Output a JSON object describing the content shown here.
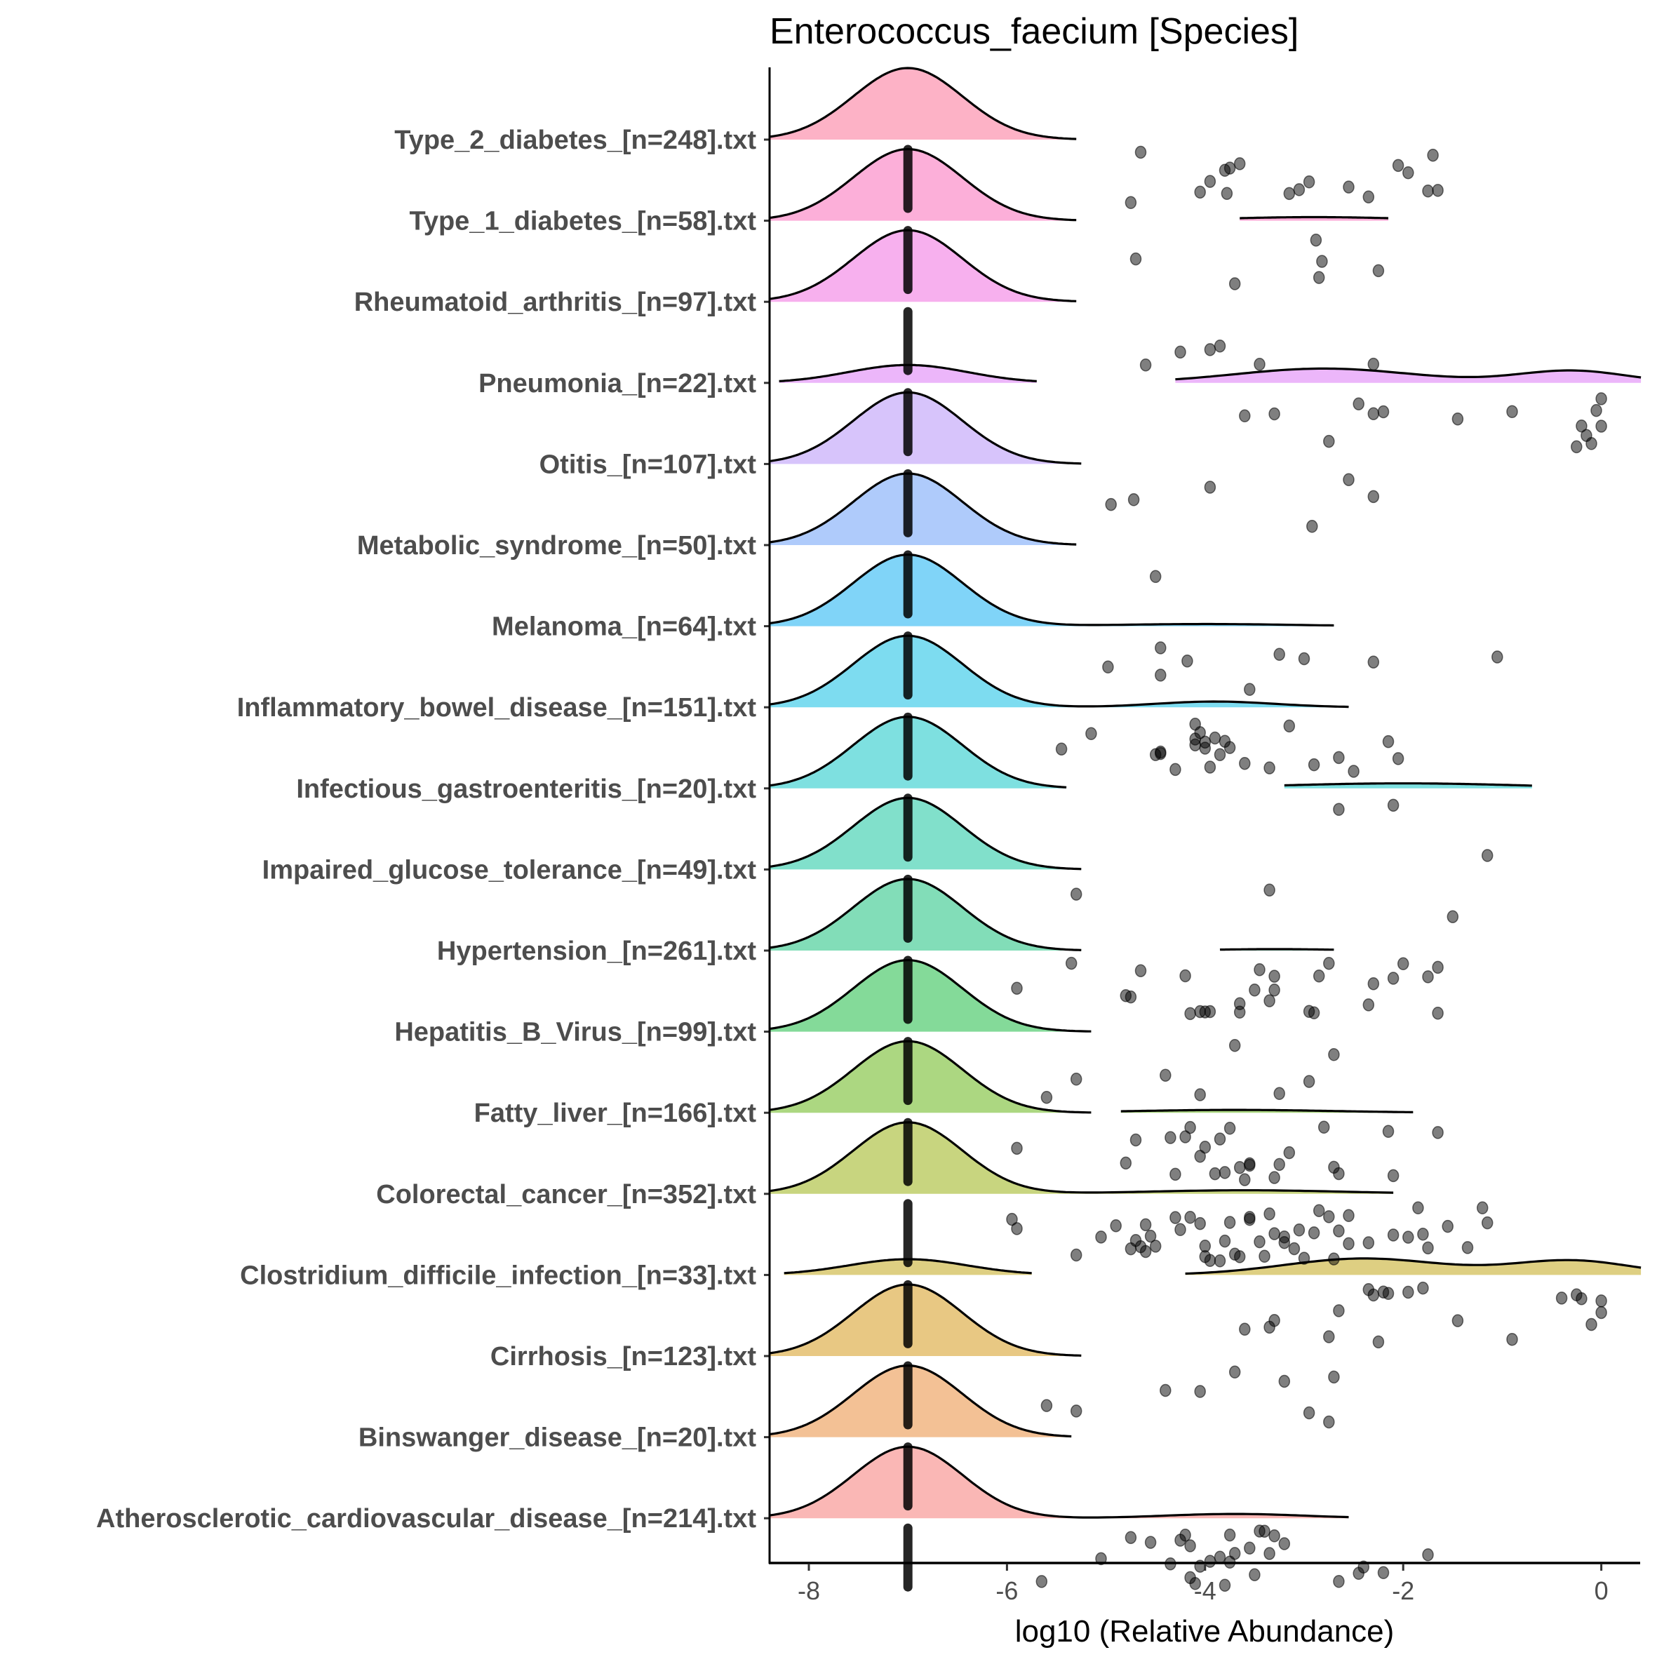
{
  "chart_data": {
    "type": "raincloud",
    "title": "Enterococcus_faecium [Species]",
    "xlabel": "log10 (Relative Abundance)",
    "ylabel": "",
    "xlim": [
      -8.4,
      0.4
    ],
    "xticks": [
      -8,
      -6,
      -4,
      -2,
      0
    ],
    "xtick_labels": [
      "-8",
      "-6",
      "-4",
      "-2",
      "0"
    ],
    "grid": false,
    "legend": "none",
    "zero_value": -7,
    "categories": [
      {
        "label": "Type_2_diabetes_[n=248].txt",
        "color": "#FDB2C6",
        "density": [
          {
            "mu": -7,
            "sd": 0.55,
            "w": 1.0,
            "from": -8.4,
            "to": -5.3
          }
        ],
        "points": [
          -4.65,
          -4.75,
          -3.75,
          -3.65,
          -4.05,
          -3.95,
          -3.8,
          -3.78,
          -3.15,
          -2.95,
          -3.05,
          -2.55,
          -2.35,
          -2.05,
          -1.95,
          -1.75,
          -1.65,
          -1.7
        ]
      },
      {
        "label": "Type_1_diabetes_[n=58].txt",
        "color": "#FCAFD9",
        "density": [
          {
            "mu": -7,
            "sd": 0.55,
            "w": 1.0,
            "from": -8.4,
            "to": -5.3
          },
          {
            "mu": -2.9,
            "sd": 0.9,
            "w": 0.05,
            "from": -3.65,
            "to": -2.15
          }
        ],
        "points": [
          -2.25,
          -4.7,
          -3.7,
          -2.85,
          -2.88,
          -2.82
        ]
      },
      {
        "label": "Rheumatoid_arthritis_[n=97].txt",
        "color": "#F7B0EE",
        "density": [
          {
            "mu": -7,
            "sd": 0.55,
            "w": 1.0,
            "from": -8.4,
            "to": -5.3
          }
        ],
        "points": [
          -4.6,
          -4.25,
          -3.95,
          -3.85,
          -3.45,
          -2.3
        ]
      },
      {
        "label": "Pneumonia_[n=22].txt",
        "color": "#ECB6FA",
        "density": [
          {
            "mu": -7,
            "sd": 0.6,
            "w": 0.25,
            "from": -8.3,
            "to": -5.7
          },
          {
            "mu": -2.8,
            "sd": 0.9,
            "w": 0.2,
            "from": -4.3,
            "to": 0.4
          },
          {
            "mu": -0.3,
            "sd": 0.55,
            "w": 0.17,
            "from": -4.3,
            "to": 0.4
          }
        ],
        "points": [
          -3.6,
          -3.3,
          -2.75,
          -2.3,
          -2.45,
          -2.2,
          -1.45,
          -0.9,
          -0.25,
          -0.2,
          -0.15,
          -0.1,
          0,
          -0.05,
          0
        ]
      },
      {
        "label": "Otitis_[n=107].txt",
        "color": "#D7C4FB",
        "density": [
          {
            "mu": -7,
            "sd": 0.55,
            "w": 1.0,
            "from": -8.4,
            "to": -5.25
          }
        ],
        "points": [
          -4.95,
          -4.72,
          -3.95,
          -2.92,
          -2.55,
          -2.3
        ]
      },
      {
        "label": "Metabolic_syndrome_[n=50].txt",
        "color": "#AFCBFB",
        "density": [
          {
            "mu": -7,
            "sd": 0.55,
            "w": 1.0,
            "from": -8.4,
            "to": -5.3
          }
        ],
        "points": [
          -4.5
        ]
      },
      {
        "label": "Melanoma_[n=64].txt",
        "color": "#80D4F8",
        "density": [
          {
            "mu": -7,
            "sd": 0.55,
            "w": 1.0,
            "from": -8.4,
            "to": -2.7
          },
          {
            "mu": -4.0,
            "sd": 0.9,
            "w": 0.03,
            "from": -8.4,
            "to": -2.7
          }
        ],
        "points": [
          -4.45,
          -3.55,
          -4.98,
          -4.45,
          -4.18,
          -3.25,
          -3.0,
          -2.3,
          -1.05
        ]
      },
      {
        "label": "Inflammatory_bowel_disease_[n=151].txt",
        "color": "#7DDCF0",
        "density": [
          {
            "mu": -7,
            "sd": 0.55,
            "w": 1.0,
            "from": -8.4,
            "to": -2.55
          },
          {
            "mu": -3.9,
            "sd": 0.6,
            "w": 0.08,
            "from": -8.4,
            "to": -2.55
          }
        ],
        "points": [
          -5.45,
          -4.45,
          -4.05,
          -4.3,
          -4.1,
          -3.95,
          -3.85,
          -4.5,
          -4.0,
          -3.75,
          -2.65,
          -2.5,
          -2.15,
          -2.05,
          -5.15,
          -4.45,
          -4.1,
          -3.9,
          -3.8,
          -3.6,
          -3.35,
          -3.15,
          -2.9,
          -4.1,
          -4.0
        ]
      },
      {
        "label": "Infectious_gastroenteritis_[n=20].txt",
        "color": "#7EE0E0",
        "density": [
          {
            "mu": -7,
            "sd": 0.55,
            "w": 1.0,
            "from": -8.4,
            "to": -5.4
          },
          {
            "mu": -2.0,
            "sd": 1.2,
            "w": 0.07,
            "from": -3.2,
            "to": -0.7
          }
        ],
        "points": [
          -2.65,
          -2.1,
          -1.15
        ]
      },
      {
        "label": "Impaired_glucose_tolerance_[n=49].txt",
        "color": "#81E0CB",
        "density": [
          {
            "mu": -7,
            "sd": 0.55,
            "w": 1.0,
            "from": -8.4,
            "to": -5.25
          }
        ],
        "points": [
          -5.3,
          -1.5,
          -3.35
        ]
      },
      {
        "label": "Hypertension_[n=261].txt",
        "color": "#82DDB8",
        "density": [
          {
            "mu": -7,
            "sd": 0.55,
            "w": 1.0,
            "from": -8.4,
            "to": -5.25
          },
          {
            "mu": -3.3,
            "sd": 0.6,
            "w": 0.02,
            "from": -3.85,
            "to": -2.7
          }
        ],
        "points": [
          -5.9,
          -4.8,
          -4.65,
          -4.15,
          -4.05,
          -4.0,
          -3.95,
          -2.9,
          -2.35,
          -2.1,
          -2.0,
          -1.75,
          -1.65,
          -5.35,
          -4.75,
          -4.2,
          -3.65,
          -3.5,
          -3.35,
          -3.3,
          -2.95,
          -2.85,
          -2.3,
          -3.65,
          -3.45,
          -3.3,
          -2.75,
          -1.65
        ]
      },
      {
        "label": "Hepatitis_B_Virus_[n=99].txt",
        "color": "#84DA99",
        "density": [
          {
            "mu": -7,
            "sd": 0.55,
            "w": 1.0,
            "from": -8.4,
            "to": -5.15
          }
        ],
        "points": [
          -5.3,
          -4.05,
          -3.7,
          -3.25,
          -2.7,
          -5.6,
          -4.4,
          -2.95
        ]
      },
      {
        "label": "Fatty_liver_[n=166].txt",
        "color": "#ACD781",
        "density": [
          {
            "mu": -7,
            "sd": 0.55,
            "w": 1.0,
            "from": -8.4,
            "to": -5.15
          },
          {
            "mu": -3.7,
            "sd": 1.0,
            "w": 0.04,
            "from": -4.85,
            "to": -1.9
          }
        ],
        "points": [
          -4.7,
          -4.35,
          -4.2,
          -4.05,
          -3.75,
          -3.65,
          -3.55,
          -3.25,
          -3.15,
          -2.8,
          -2.15,
          -2.1,
          -1.65,
          -4.8,
          -4.3,
          -4.15,
          -3.9,
          -3.8,
          -3.6,
          -3.3,
          -2.7,
          -5.9,
          -3.85,
          -3.55,
          -2.65,
          -4.0
        ]
      },
      {
        "label": "Colorectal_cancer_[n=352].txt",
        "color": "#C8D57F",
        "density": [
          {
            "mu": -7,
            "sd": 0.55,
            "w": 1.0,
            "from": -8.4,
            "to": -2.1
          },
          {
            "mu": -3.6,
            "sd": 1.0,
            "w": 0.05,
            "from": -8.4,
            "to": -2.1
          }
        ],
        "points": [
          -5.95,
          -5.9,
          -5.3,
          -5.05,
          -4.9,
          -4.7,
          -4.65,
          -4.6,
          -4.5,
          -4.25,
          -4.15,
          -4.05,
          -3.95,
          -3.85,
          -3.8,
          -3.7,
          -3.65,
          -3.55,
          -3.45,
          -3.35,
          -3.3,
          -3.2,
          -3.1,
          -3.0,
          -2.9,
          -2.75,
          -2.65,
          -2.55,
          -2.35,
          -2.1,
          -1.95,
          -1.8,
          -1.75,
          -1.55,
          -1.35,
          -1.2,
          -1.15,
          -4.55,
          -4.3,
          -4.0,
          -3.75,
          -3.55,
          -3.2,
          -3.05,
          -2.85,
          -4.75,
          -4.6,
          -4.0,
          -3.4,
          -2.55,
          -2.7,
          -1.85
        ]
      },
      {
        "label": "Clostridium_difficile_infection_[n=33].txt",
        "color": "#DECF82",
        "density": [
          {
            "mu": -7,
            "sd": 0.6,
            "w": 0.22,
            "from": -8.25,
            "to": -5.75
          },
          {
            "mu": -2.4,
            "sd": 0.8,
            "w": 0.23,
            "from": -4.2,
            "to": 0.4
          },
          {
            "mu": -0.3,
            "sd": 0.6,
            "w": 0.2,
            "from": -4.2,
            "to": 0.4
          }
        ],
        "points": [
          -3.6,
          -3.3,
          -3.35,
          -2.75,
          -2.35,
          -2.3,
          -2.2,
          -2.15,
          -1.95,
          -1.8,
          -1.45,
          -0.9,
          -0.4,
          -0.25,
          -0.2,
          -0.1,
          0,
          0,
          -2.25,
          -2.65
        ]
      },
      {
        "label": "Cirrhosis_[n=123].txt",
        "color": "#E8C883",
        "density": [
          {
            "mu": -7,
            "sd": 0.55,
            "w": 1.0,
            "from": -8.4,
            "to": -5.25
          }
        ],
        "points": [
          -5.6,
          -5.3,
          -4.4,
          -4.05,
          -3.7,
          -3.2,
          -2.95,
          -2.75,
          -2.7
        ]
      },
      {
        "label": "Binswanger_disease_[n=20].txt",
        "color": "#F3C195",
        "density": [
          {
            "mu": -7,
            "sd": 0.55,
            "w": 1.0,
            "from": -8.4,
            "to": -5.35
          }
        ],
        "points": []
      },
      {
        "label": "Atherosclerotic_cardiovascular_disease_[n=214].txt",
        "color": "#FAB7B5",
        "density": [
          {
            "mu": -7,
            "sd": 0.55,
            "w": 1.0,
            "from": -8.4,
            "to": -2.55
          },
          {
            "mu": -3.7,
            "sd": 0.7,
            "w": 0.06,
            "from": -8.4,
            "to": -2.55
          }
        ],
        "points": [
          -5.65,
          -5.05,
          -4.75,
          -4.55,
          -4.35,
          -4.25,
          -4.2,
          -4.15,
          -4.05,
          -3.95,
          -3.85,
          -3.8,
          -3.75,
          -3.7,
          -3.55,
          -3.45,
          -3.4,
          -3.35,
          -3.3,
          -3.2,
          -2.65,
          -2.45,
          -2.2,
          -1.75,
          -4.15,
          -4.1,
          -3.5,
          -2.4,
          -3.75
        ]
      }
    ]
  }
}
